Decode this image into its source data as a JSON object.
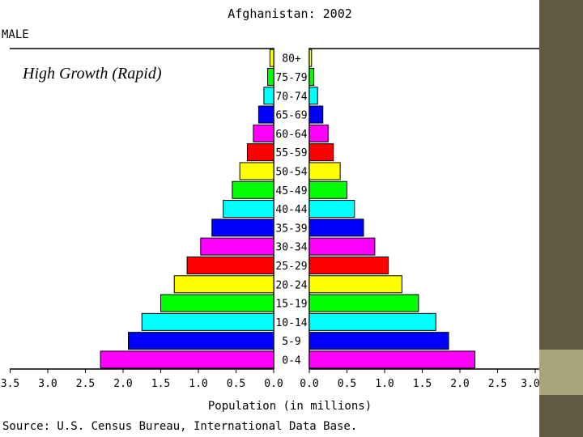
{
  "chart_data": {
    "type": "bar",
    "title": "Afghanistan: 2002",
    "subtitle": "High Growth (Rapid)",
    "left_label": "MALE",
    "right_label": "",
    "xlabel": "Population (in millions)",
    "source": "Source: U.S. Census Bureau, International Data Base.",
    "xlim": [
      0,
      3.5
    ],
    "ticks": [
      "3.5",
      "3.0",
      "2.5",
      "2.0",
      "1.5",
      "1.0",
      "0.5",
      "0.0"
    ],
    "categories": [
      "80+",
      "75-79",
      "70-74",
      "65-69",
      "60-64",
      "55-59",
      "50-54",
      "45-49",
      "40-44",
      "35-39",
      "30-34",
      "25-29",
      "20-24",
      "15-19",
      "10-14",
      "5-9",
      "0-4"
    ],
    "colors": [
      "#ffff00",
      "#00ff00",
      "#00ffff",
      "#0000ff",
      "#ff00ff",
      "#ff0000",
      "#ffff00",
      "#00ff00",
      "#00ffff",
      "#0000ff",
      "#ff00ff",
      "#ff0000",
      "#ffff00",
      "#00ff00",
      "#00ffff",
      "#0000ff",
      "#ff00ff"
    ],
    "series": [
      {
        "name": "MALE",
        "values": [
          0.05,
          0.08,
          0.13,
          0.2,
          0.27,
          0.35,
          0.45,
          0.55,
          0.67,
          0.82,
          0.97,
          1.15,
          1.32,
          1.5,
          1.75,
          1.93,
          2.3
        ]
      },
      {
        "name": "",
        "values": [
          0.03,
          0.06,
          0.11,
          0.18,
          0.25,
          0.32,
          0.41,
          0.5,
          0.6,
          0.72,
          0.87,
          1.05,
          1.23,
          1.45,
          1.68,
          1.85,
          2.2
        ]
      }
    ]
  },
  "colors": {
    "panel": "#5f5a41",
    "accent": "#a8a47d"
  }
}
